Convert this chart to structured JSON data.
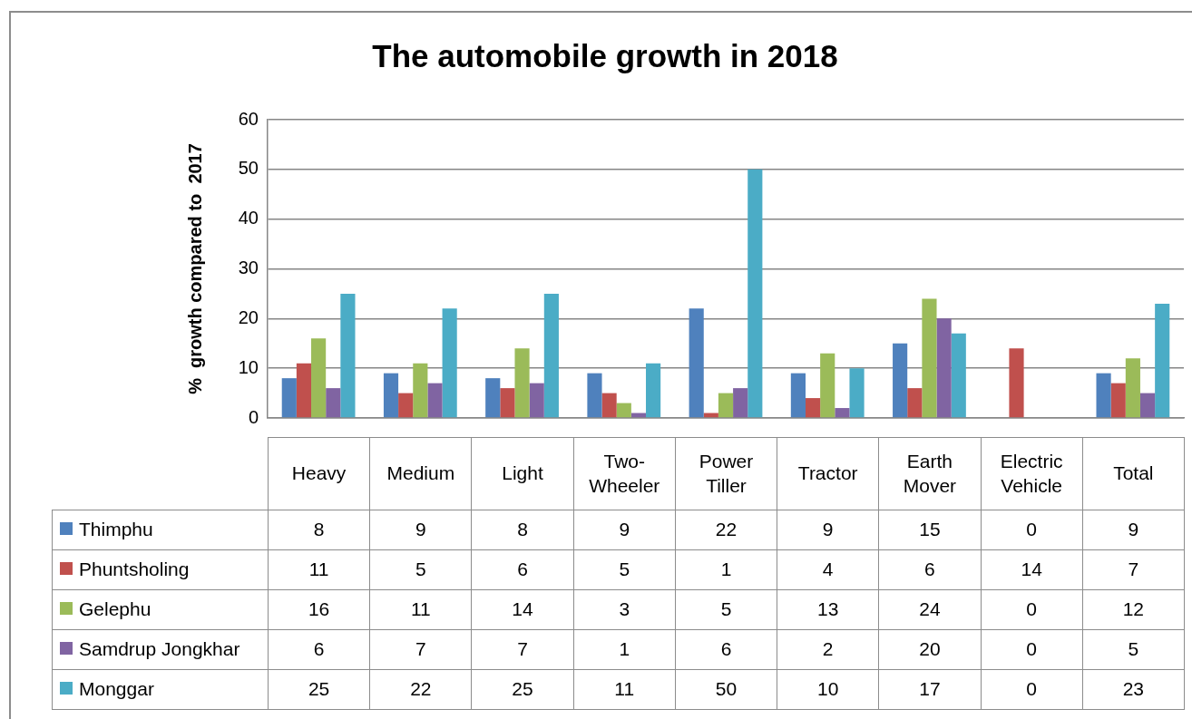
{
  "chart_data": {
    "type": "bar",
    "title": "The automobile growth in 2018",
    "ylabel": "%  growth compared to  2017",
    "categories": [
      "Heavy",
      "Medium",
      "Light",
      "Two-Wheeler",
      "Power Tiller",
      "Tractor",
      "Earth Mover",
      "Electric Vehicle",
      "Total"
    ],
    "series": [
      {
        "name": "Thimphu",
        "color": "#4f81bd",
        "values": [
          8,
          9,
          8,
          9,
          22,
          9,
          15,
          0,
          9
        ]
      },
      {
        "name": "Phuntsholing",
        "color": "#c0504d",
        "values": [
          11,
          5,
          6,
          5,
          1,
          4,
          6,
          14,
          7
        ]
      },
      {
        "name": "Gelephu",
        "color": "#9bbb59",
        "values": [
          16,
          11,
          14,
          3,
          5,
          13,
          24,
          0,
          12
        ]
      },
      {
        "name": "Samdrup Jongkhar",
        "color": "#8064a2",
        "values": [
          6,
          7,
          7,
          1,
          6,
          2,
          20,
          0,
          5
        ]
      },
      {
        "name": "Monggar",
        "color": "#4bacc6",
        "values": [
          25,
          22,
          25,
          11,
          50,
          10,
          17,
          0,
          23
        ]
      }
    ],
    "ylim": [
      0,
      60
    ],
    "yticks": [
      0,
      10,
      20,
      30,
      40,
      50,
      60
    ],
    "grid": "y",
    "legend": "bottom left",
    "data_labels": true
  }
}
